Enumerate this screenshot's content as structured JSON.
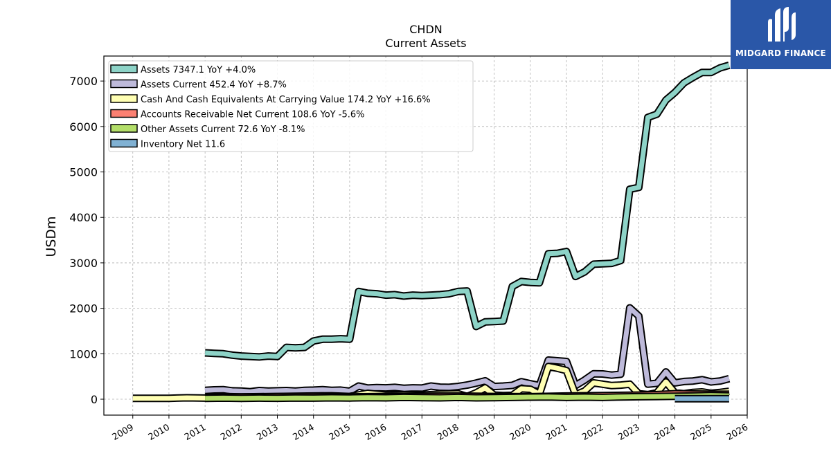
{
  "chart_data": {
    "type": "line",
    "title": "CHDN",
    "subtitle": "Current  Assets",
    "xlabel": "",
    "ylabel": "USDm",
    "xlim": [
      2008.2,
      2026.0
    ],
    "ylim": [
      -350,
      7550
    ],
    "x_ticks": [
      2009,
      2010,
      2011,
      2012,
      2013,
      2014,
      2015,
      2016,
      2017,
      2018,
      2019,
      2020,
      2021,
      2022,
      2023,
      2024,
      2025,
      2026
    ],
    "y_ticks": [
      0,
      1000,
      2000,
      3000,
      4000,
      5000,
      6000,
      7000
    ],
    "grid": true,
    "legend_position": "top-left",
    "series": [
      {
        "name": "Assets",
        "legend": "Assets  7347.1 YoY +4.0%",
        "color": "#8dd3c7",
        "points": [
          [
            2011.0,
            1020
          ],
          [
            2011.25,
            1010
          ],
          [
            2011.5,
            1000
          ],
          [
            2011.75,
            970
          ],
          [
            2012.0,
            950
          ],
          [
            2012.25,
            940
          ],
          [
            2012.5,
            930
          ],
          [
            2012.75,
            950
          ],
          [
            2013.0,
            940
          ],
          [
            2013.25,
            1140
          ],
          [
            2013.5,
            1130
          ],
          [
            2013.75,
            1140
          ],
          [
            2014.0,
            1280
          ],
          [
            2014.25,
            1320
          ],
          [
            2014.5,
            1320
          ],
          [
            2014.75,
            1330
          ],
          [
            2015.0,
            1320
          ],
          [
            2015.25,
            2370
          ],
          [
            2015.5,
            2330
          ],
          [
            2015.75,
            2320
          ],
          [
            2016.0,
            2290
          ],
          [
            2016.25,
            2300
          ],
          [
            2016.5,
            2270
          ],
          [
            2016.75,
            2290
          ],
          [
            2017.0,
            2280
          ],
          [
            2017.25,
            2290
          ],
          [
            2017.5,
            2300
          ],
          [
            2017.75,
            2320
          ],
          [
            2018.0,
            2370
          ],
          [
            2018.25,
            2380
          ],
          [
            2018.5,
            1600
          ],
          [
            2018.75,
            1700
          ],
          [
            2019.0,
            1710
          ],
          [
            2019.25,
            1720
          ],
          [
            2019.5,
            2480
          ],
          [
            2019.75,
            2590
          ],
          [
            2020.0,
            2570
          ],
          [
            2020.25,
            2560
          ],
          [
            2020.5,
            3200
          ],
          [
            2020.75,
            3210
          ],
          [
            2021.0,
            3250
          ],
          [
            2021.25,
            2700
          ],
          [
            2021.5,
            2800
          ],
          [
            2021.75,
            2970
          ],
          [
            2022.0,
            2980
          ],
          [
            2022.25,
            2990
          ],
          [
            2022.5,
            3050
          ],
          [
            2022.75,
            4620
          ],
          [
            2023.0,
            4660
          ],
          [
            2023.25,
            6200
          ],
          [
            2023.5,
            6270
          ],
          [
            2023.75,
            6580
          ],
          [
            2024.0,
            6750
          ],
          [
            2024.25,
            6960
          ],
          [
            2024.5,
            7080
          ],
          [
            2024.75,
            7190
          ],
          [
            2025.0,
            7190
          ],
          [
            2025.25,
            7290
          ],
          [
            2025.5,
            7347.1
          ]
        ]
      },
      {
        "name": "Assets Current",
        "legend": "Assets Current  452.4 YoY +8.7%",
        "color": "#bebada",
        "points": [
          [
            2011.0,
            195
          ],
          [
            2011.25,
            205
          ],
          [
            2011.5,
            210
          ],
          [
            2011.75,
            185
          ],
          [
            2012.0,
            180
          ],
          [
            2012.25,
            165
          ],
          [
            2012.5,
            190
          ],
          [
            2012.75,
            180
          ],
          [
            2013.0,
            185
          ],
          [
            2013.25,
            190
          ],
          [
            2013.5,
            180
          ],
          [
            2013.75,
            195
          ],
          [
            2014.0,
            200
          ],
          [
            2014.25,
            210
          ],
          [
            2014.5,
            195
          ],
          [
            2014.75,
            200
          ],
          [
            2015.0,
            175
          ],
          [
            2015.25,
            290
          ],
          [
            2015.5,
            245
          ],
          [
            2015.75,
            255
          ],
          [
            2016.0,
            250
          ],
          [
            2016.25,
            260
          ],
          [
            2016.5,
            240
          ],
          [
            2016.75,
            250
          ],
          [
            2017.0,
            245
          ],
          [
            2017.25,
            290
          ],
          [
            2017.5,
            265
          ],
          [
            2017.75,
            260
          ],
          [
            2018.0,
            280
          ],
          [
            2018.25,
            310
          ],
          [
            2018.5,
            355
          ],
          [
            2018.75,
            405
          ],
          [
            2019.0,
            280
          ],
          [
            2019.25,
            290
          ],
          [
            2019.5,
            305
          ],
          [
            2019.75,
            385
          ],
          [
            2020.0,
            340
          ],
          [
            2020.25,
            300
          ],
          [
            2020.5,
            860
          ],
          [
            2020.75,
            845
          ],
          [
            2021.0,
            830
          ],
          [
            2021.25,
            300
          ],
          [
            2021.5,
            420
          ],
          [
            2021.75,
            560
          ],
          [
            2022.0,
            555
          ],
          [
            2022.25,
            530
          ],
          [
            2022.5,
            550
          ],
          [
            2022.75,
            2010
          ],
          [
            2023.0,
            1830
          ],
          [
            2023.25,
            330
          ],
          [
            2023.5,
            350
          ],
          [
            2023.75,
            600
          ],
          [
            2024.0,
            360
          ],
          [
            2024.25,
            390
          ],
          [
            2024.5,
            400
          ],
          [
            2024.75,
            430
          ],
          [
            2025.0,
            380
          ],
          [
            2025.25,
            400
          ],
          [
            2025.5,
            452.4
          ]
        ]
      },
      {
        "name": "Cash And Cash Equivalents At Carrying Value",
        "legend": "Cash And Cash Equivalents At Carrying Value  174.2 YoY +16.6%",
        "color": "#ffffb3",
        "points": [
          [
            2009.0,
            20
          ],
          [
            2009.5,
            20
          ],
          [
            2010.0,
            20
          ],
          [
            2010.5,
            30
          ],
          [
            2011.0,
            25
          ],
          [
            2011.5,
            60
          ],
          [
            2012.0,
            50
          ],
          [
            2012.5,
            55
          ],
          [
            2013.0,
            60
          ],
          [
            2013.5,
            65
          ],
          [
            2014.0,
            70
          ],
          [
            2014.5,
            75
          ],
          [
            2015.0,
            60
          ],
          [
            2015.5,
            130
          ],
          [
            2016.0,
            90
          ],
          [
            2016.5,
            95
          ],
          [
            2017.0,
            90
          ],
          [
            2017.5,
            110
          ],
          [
            2018.0,
            120
          ],
          [
            2018.25,
            60
          ],
          [
            2018.5,
            140
          ],
          [
            2018.75,
            250
          ],
          [
            2019.0,
            90
          ],
          [
            2019.25,
            80
          ],
          [
            2019.5,
            85
          ],
          [
            2019.75,
            230
          ],
          [
            2020.0,
            220
          ],
          [
            2020.25,
            110
          ],
          [
            2020.5,
            720
          ],
          [
            2020.75,
            680
          ],
          [
            2021.0,
            630
          ],
          [
            2021.25,
            100
          ],
          [
            2021.5,
            180
          ],
          [
            2021.75,
            360
          ],
          [
            2022.0,
            330
          ],
          [
            2022.25,
            300
          ],
          [
            2022.5,
            310
          ],
          [
            2022.75,
            330
          ],
          [
            2023.0,
            120
          ],
          [
            2023.25,
            100
          ],
          [
            2023.5,
            140
          ],
          [
            2023.75,
            380
          ],
          [
            2024.0,
            140
          ],
          [
            2024.25,
            120
          ],
          [
            2024.5,
            150
          ],
          [
            2024.75,
            160
          ],
          [
            2025.0,
            130
          ],
          [
            2025.25,
            150
          ],
          [
            2025.5,
            174.2
          ]
        ]
      },
      {
        "name": "Accounts Receivable Net Current",
        "legend": "Accounts Receivable Net Current  108.6 YoY -5.6%",
        "color": "#fb8072",
        "points": [
          [
            2011.0,
            45
          ],
          [
            2012.0,
            50
          ],
          [
            2013.0,
            55
          ],
          [
            2014.0,
            60
          ],
          [
            2015.0,
            50
          ],
          [
            2016.0,
            60
          ],
          [
            2017.0,
            65
          ],
          [
            2018.0,
            70
          ],
          [
            2019.0,
            60
          ],
          [
            2020.0,
            55
          ],
          [
            2021.0,
            70
          ],
          [
            2022.0,
            80
          ],
          [
            2023.0,
            90
          ],
          [
            2023.5,
            100
          ],
          [
            2024.0,
            120
          ],
          [
            2024.5,
            115
          ],
          [
            2025.0,
            110
          ],
          [
            2025.5,
            108.6
          ]
        ]
      },
      {
        "name": "Other Assets Current",
        "legend": "Other Assets Current  72.6 YoY -8.1%",
        "color": "#b3de69",
        "points": [
          [
            2011.0,
            20
          ],
          [
            2011.5,
            25
          ],
          [
            2012.0,
            20
          ],
          [
            2012.5,
            25
          ],
          [
            2013.0,
            22
          ],
          [
            2013.5,
            28
          ],
          [
            2014.0,
            25
          ],
          [
            2014.5,
            30
          ],
          [
            2015.0,
            28
          ],
          [
            2015.5,
            35
          ],
          [
            2016.0,
            30
          ],
          [
            2016.5,
            40
          ],
          [
            2017.0,
            35
          ],
          [
            2017.5,
            30
          ],
          [
            2018.0,
            40
          ],
          [
            2018.5,
            30
          ],
          [
            2019.0,
            35
          ],
          [
            2019.5,
            40
          ],
          [
            2020.0,
            45
          ],
          [
            2020.5,
            50
          ],
          [
            2021.0,
            40
          ],
          [
            2021.5,
            45
          ],
          [
            2022.0,
            40
          ],
          [
            2022.5,
            50
          ],
          [
            2023.0,
            55
          ],
          [
            2023.5,
            60
          ],
          [
            2024.0,
            65
          ],
          [
            2024.5,
            70
          ],
          [
            2025.0,
            79
          ],
          [
            2025.5,
            72.6
          ]
        ]
      },
      {
        "name": "Inventory Net",
        "legend": "Inventory Net  11.6",
        "color": "#80b1d3",
        "points": [
          [
            2024.0,
            11.6
          ],
          [
            2025.5,
            11.6
          ]
        ]
      }
    ]
  },
  "logo": {
    "name": "MIDGARD FINANCE",
    "icon": "midgard-logo-icon"
  }
}
